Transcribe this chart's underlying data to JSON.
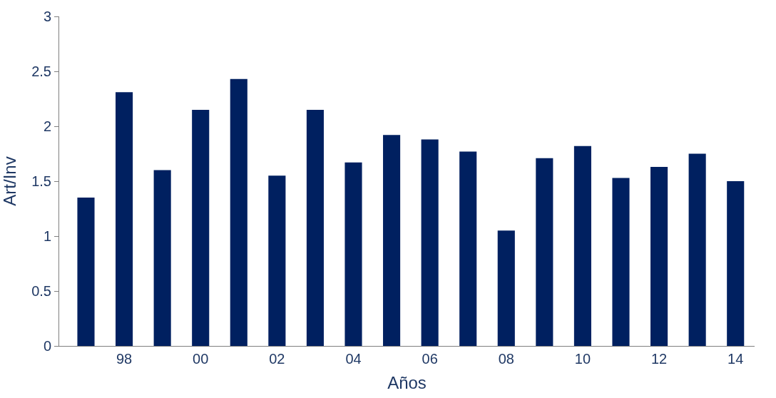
{
  "chart_data": {
    "type": "bar",
    "xlabel": "Años",
    "ylabel": "Art/Inv",
    "categories": [
      null,
      "98",
      null,
      "00",
      null,
      "02",
      null,
      "04",
      null,
      "06",
      null,
      "08",
      null,
      "10",
      null,
      "12",
      null,
      "14"
    ],
    "values": [
      1.35,
      2.31,
      1.6,
      2.15,
      2.43,
      1.55,
      2.15,
      1.67,
      1.92,
      1.88,
      1.77,
      1.05,
      1.71,
      1.82,
      1.53,
      1.63,
      1.75,
      1.5
    ],
    "color": "#002060",
    "ylim": [
      0,
      3
    ],
    "yticks": [
      0,
      0.5,
      1,
      1.5,
      2,
      2.5,
      3
    ],
    "legend": false
  }
}
